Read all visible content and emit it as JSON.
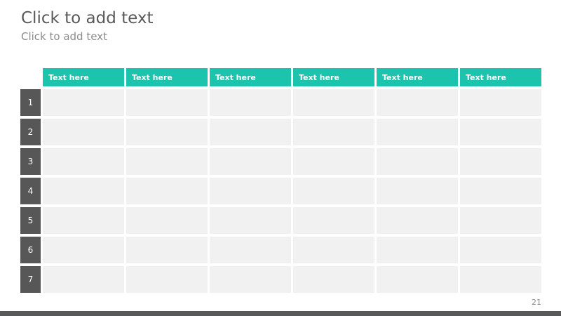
{
  "slide": {
    "title": "Click to add text",
    "subtitle": "Click to add text",
    "page_number": "21"
  },
  "table": {
    "columns": [
      "Text here",
      "Text here",
      "Text here",
      "Text here",
      "Text here",
      "Text here"
    ],
    "row_numbers": [
      "1",
      "2",
      "3",
      "4",
      "5",
      "6",
      "7"
    ],
    "rows": 7,
    "cols": 6,
    "cells_empty": true
  },
  "colors": {
    "accent_teal": "#1cc3ad",
    "row_number_bg": "#575757",
    "cell_bg": "#f1f1f1",
    "title_color": "#595959",
    "subtitle_color": "#8c8c8c",
    "page_number_color": "#8c8c8c",
    "footer_bar": "#58595b"
  }
}
